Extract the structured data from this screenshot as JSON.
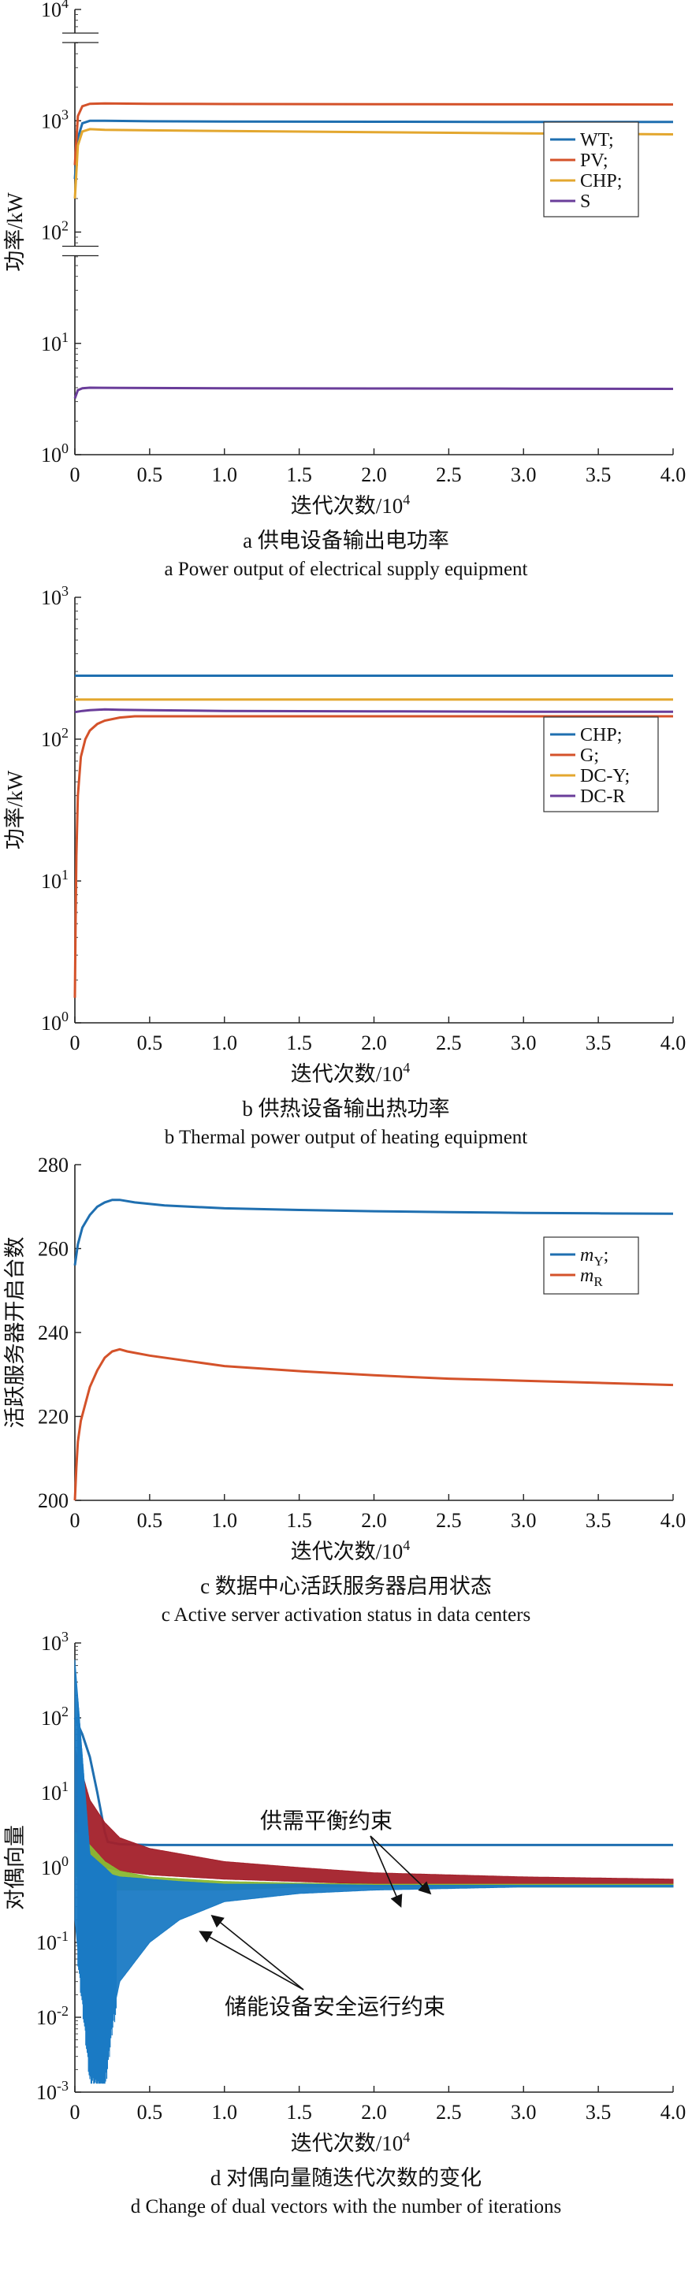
{
  "chart_data": [
    {
      "type": "line",
      "yscale": "log",
      "ylim": [
        1,
        10000
      ],
      "xlim": [
        0,
        4.0
      ],
      "xticks": [
        "0",
        "0.5",
        "1.0",
        "1.5",
        "2.0",
        "2.5",
        "3.0",
        "3.5",
        "4.0"
      ],
      "yticks": [
        {
          "value": 1,
          "base": "10",
          "exp": "0"
        },
        {
          "value": 10,
          "base": "10",
          "exp": "1"
        },
        {
          "value": 100,
          "base": "10",
          "exp": "2"
        },
        {
          "value": 1000,
          "base": "10",
          "exp": "3"
        },
        {
          "value": 10000,
          "base": "10",
          "exp": "4"
        }
      ],
      "xlabel": "迭代次数/10",
      "xlabel_exp": "4",
      "ylabel": "功率/kW",
      "caption_cn": "a 供电设备输出电功率",
      "caption_en": "a Power output of electrical supply equipment",
      "legend_position": "right",
      "series": [
        {
          "name": "WT;",
          "color": "#1f6fb0",
          "x": [
            0,
            0.02,
            0.05,
            0.1,
            0.2,
            0.5,
            1.0,
            2.0,
            3.0,
            4.0
          ],
          "values": [
            300,
            700,
            950,
            1000,
            1000,
            990,
            985,
            980,
            975,
            975
          ]
        },
        {
          "name": "PV;",
          "color": "#d4522a",
          "x": [
            0,
            0.02,
            0.05,
            0.1,
            0.2,
            0.5,
            1.0,
            2.0,
            3.0,
            4.0
          ],
          "values": [
            400,
            1100,
            1350,
            1420,
            1430,
            1420,
            1415,
            1410,
            1405,
            1400
          ]
        },
        {
          "name": "CHP;",
          "color": "#e3a72f",
          "x": [
            0,
            0.02,
            0.05,
            0.1,
            0.2,
            0.5,
            1.0,
            2.0,
            3.0,
            4.0
          ],
          "values": [
            200,
            600,
            800,
            840,
            830,
            820,
            810,
            790,
            770,
            755
          ]
        },
        {
          "name": "S",
          "color": "#6a3d9a",
          "x": [
            0,
            0.02,
            0.05,
            0.1,
            0.3,
            1.0,
            2.0,
            3.0,
            4.0
          ],
          "values": [
            3.2,
            3.8,
            3.95,
            4.0,
            3.98,
            3.95,
            3.93,
            3.92,
            3.9
          ]
        }
      ]
    },
    {
      "type": "line",
      "yscale": "log",
      "ylim": [
        1,
        1000
      ],
      "xlim": [
        0,
        4.0
      ],
      "xticks": [
        "0",
        "0.5",
        "1.0",
        "1.5",
        "2.0",
        "2.5",
        "3.0",
        "3.5",
        "4.0"
      ],
      "yticks": [
        {
          "value": 1,
          "base": "10",
          "exp": "0"
        },
        {
          "value": 10,
          "base": "10",
          "exp": "1"
        },
        {
          "value": 100,
          "base": "10",
          "exp": "2"
        },
        {
          "value": 1000,
          "base": "10",
          "exp": "3"
        }
      ],
      "xlabel": "迭代次数/10",
      "xlabel_exp": "4",
      "ylabel": "功率/kW",
      "caption_cn": "b 供热设备输出热功率",
      "caption_en": "b Thermal power output of heating equipment",
      "legend_position": "right",
      "series": [
        {
          "name": "CHP;",
          "color": "#1f6fb0",
          "x": [
            0,
            4.0
          ],
          "values": [
            280,
            280
          ]
        },
        {
          "name": "G;",
          "color": "#d4522a",
          "x": [
            0,
            0.005,
            0.01,
            0.02,
            0.04,
            0.07,
            0.1,
            0.15,
            0.2,
            0.3,
            0.4,
            1.0,
            2.0,
            3.0,
            4.0
          ],
          "values": [
            1.5,
            5,
            15,
            40,
            75,
            100,
            115,
            128,
            135,
            142,
            145,
            145,
            145,
            145,
            145
          ]
        },
        {
          "name": "DC-Y;",
          "color": "#e3a72f",
          "x": [
            0,
            4.0
          ],
          "values": [
            190,
            190
          ]
        },
        {
          "name": "DC-R",
          "color": "#6a3d9a",
          "x": [
            0,
            0.05,
            0.1,
            0.2,
            0.3,
            0.5,
            1.0,
            2.0,
            3.0,
            4.0
          ],
          "values": [
            155,
            158,
            160,
            162,
            161,
            160,
            158,
            157,
            156,
            156
          ]
        }
      ]
    },
    {
      "type": "line",
      "yscale": "linear",
      "ylim": [
        200,
        280
      ],
      "xlim": [
        0,
        4.0
      ],
      "xticks": [
        "0",
        "0.5",
        "1.0",
        "1.5",
        "2.0",
        "2.5",
        "3.0",
        "3.5",
        "4.0"
      ],
      "yticks": [
        {
          "value": 200,
          "label": "200"
        },
        {
          "value": 220,
          "label": "220"
        },
        {
          "value": 240,
          "label": "240"
        },
        {
          "value": 260,
          "label": "260"
        },
        {
          "value": 280,
          "label": "280"
        }
      ],
      "xlabel": "迭代次数/10",
      "xlabel_exp": "4",
      "ylabel": "活跃服务器开启台数",
      "caption_cn": "c 数据中心活跃服务器启用状态",
      "caption_en": "c Active server activation status in data centers",
      "legend_position": "right",
      "series": [
        {
          "name": "m",
          "sub": "Y",
          "suffix": ";",
          "color": "#1f6fb0",
          "x": [
            0,
            0.02,
            0.05,
            0.1,
            0.15,
            0.2,
            0.25,
            0.3,
            0.4,
            0.6,
            1.0,
            1.5,
            2.0,
            2.5,
            3.0,
            3.5,
            4.0
          ],
          "values": [
            256,
            261,
            265,
            268,
            270,
            271,
            271.6,
            271.6,
            271,
            270.3,
            269.6,
            269.2,
            268.9,
            268.7,
            268.5,
            268.4,
            268.3
          ]
        },
        {
          "name": "m",
          "sub": "R",
          "suffix": "",
          "color": "#d4522a",
          "x": [
            0,
            0.01,
            0.02,
            0.04,
            0.07,
            0.1,
            0.15,
            0.2,
            0.25,
            0.3,
            0.35,
            0.5,
            0.8,
            1.0,
            1.5,
            2.0,
            2.5,
            3.0,
            3.5,
            4.0
          ],
          "values": [
            200,
            208,
            214,
            219,
            223,
            227,
            231,
            234,
            235.5,
            236,
            235.5,
            234.5,
            233,
            232,
            230.8,
            229.8,
            229,
            228.5,
            228,
            227.5
          ]
        }
      ]
    },
    {
      "type": "line",
      "yscale": "log",
      "ylim": [
        0.001,
        1000
      ],
      "xlim": [
        0,
        4.0
      ],
      "xticks": [
        "0",
        "0.5",
        "1.0",
        "1.5",
        "2.0",
        "2.5",
        "3.0",
        "3.5",
        "4.0"
      ],
      "yticks": [
        {
          "value": 0.001,
          "base": "10",
          "exp": "-3"
        },
        {
          "value": 0.01,
          "base": "10",
          "exp": "-2"
        },
        {
          "value": 0.1,
          "base": "10",
          "exp": "-1"
        },
        {
          "value": 1,
          "base": "10",
          "exp": "0"
        },
        {
          "value": 10,
          "base": "10",
          "exp": "1"
        },
        {
          "value": 100,
          "base": "10",
          "exp": "2"
        },
        {
          "value": 1000,
          "base": "10",
          "exp": "3"
        }
      ],
      "xlabel": "迭代次数/10",
      "xlabel_exp": "4",
      "ylabel": "对偶向量",
      "caption_cn": "d 对偶向量随迭代次数的变化",
      "caption_en": "d Change of dual vectors with the number of iterations",
      "annotations": [
        "供需平衡约束",
        "储能设备安全运行约束"
      ],
      "series": [
        {
          "name": "供需平衡约束 (smooth)",
          "color": "#1f6fb0",
          "x": [
            0,
            0.05,
            0.1,
            0.15,
            0.2,
            0.22,
            0.3,
            0.5,
            1.0,
            2.0,
            3.0,
            4.0
          ],
          "values": [
            100,
            60,
            30,
            10,
            3,
            2.2,
            2.05,
            2.0,
            2.0,
            2.0,
            2.0,
            2.0
          ]
        },
        {
          "name": "供需平衡约束 (oscillating)",
          "color": "#a3202a",
          "x": [
            0,
            0.1,
            0.2,
            0.3,
            0.5,
            1.0,
            1.5,
            2.0,
            3.0,
            4.0
          ],
          "band_low": [
            3,
            1.5,
            1.0,
            0.9,
            0.8,
            0.7,
            0.65,
            0.6,
            0.6,
            0.6
          ],
          "band_high": [
            40,
            8,
            4,
            2.5,
            1.8,
            1.2,
            1.0,
            0.85,
            0.75,
            0.7
          ]
        },
        {
          "name": "储能设备安全运行约束 (green)",
          "color": "#8ab833",
          "x": [
            0,
            0.1,
            0.2,
            0.3,
            0.5,
            1.0,
            1.5,
            2.0,
            3.0,
            4.0
          ],
          "band_low": [
            0.8,
            0.5,
            0.5,
            0.5,
            0.5,
            0.5,
            0.55,
            0.55,
            0.55,
            0.55
          ],
          "band_high": [
            3,
            2,
            1.2,
            0.9,
            0.75,
            0.65,
            0.62,
            0.6,
            0.6,
            0.6
          ]
        },
        {
          "name": "储能设备安全运行约束 (blue)",
          "color": "#1a7ac4",
          "x": [
            0,
            0.1,
            0.2,
            0.25,
            0.3,
            0.5,
            0.7,
            1.0,
            1.5,
            2.0,
            3.0,
            4.0
          ],
          "band_low": [
            0.2,
            0.002,
            0.0015,
            0.01,
            0.03,
            0.1,
            0.2,
            0.35,
            0.45,
            0.5,
            0.55,
            0.55
          ],
          "band_high": [
            600,
            1.5,
            1.0,
            0.8,
            0.75,
            0.7,
            0.65,
            0.6,
            0.6,
            0.58,
            0.58,
            0.58
          ]
        }
      ]
    }
  ]
}
